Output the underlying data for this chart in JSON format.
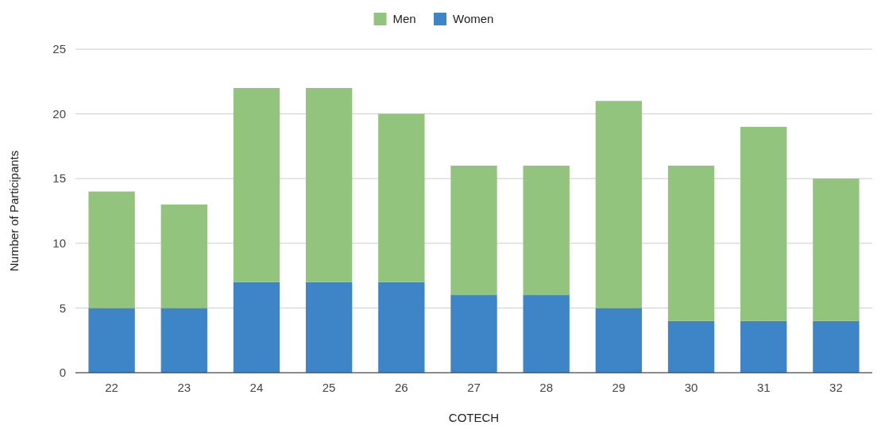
{
  "chart_data": {
    "type": "bar",
    "stacked": true,
    "xlabel": "COTECH",
    "ylabel": "Number of Participants",
    "categories": [
      "22",
      "23",
      "24",
      "25",
      "26",
      "27",
      "28",
      "29",
      "30",
      "31",
      "32"
    ],
    "series": [
      {
        "name": "Women",
        "color": "#3d85c6",
        "values": [
          5,
          5,
          7,
          7,
          7,
          6,
          6,
          5,
          4,
          4,
          4
        ]
      },
      {
        "name": "Men",
        "color": "#93c47d",
        "values": [
          9,
          8,
          15,
          15,
          13,
          10,
          10,
          16,
          12,
          15,
          11
        ]
      }
    ],
    "ylim": [
      0,
      25
    ],
    "yticks": [
      0,
      5,
      10,
      15,
      20,
      25
    ],
    "grid": "y",
    "legend": "top"
  }
}
